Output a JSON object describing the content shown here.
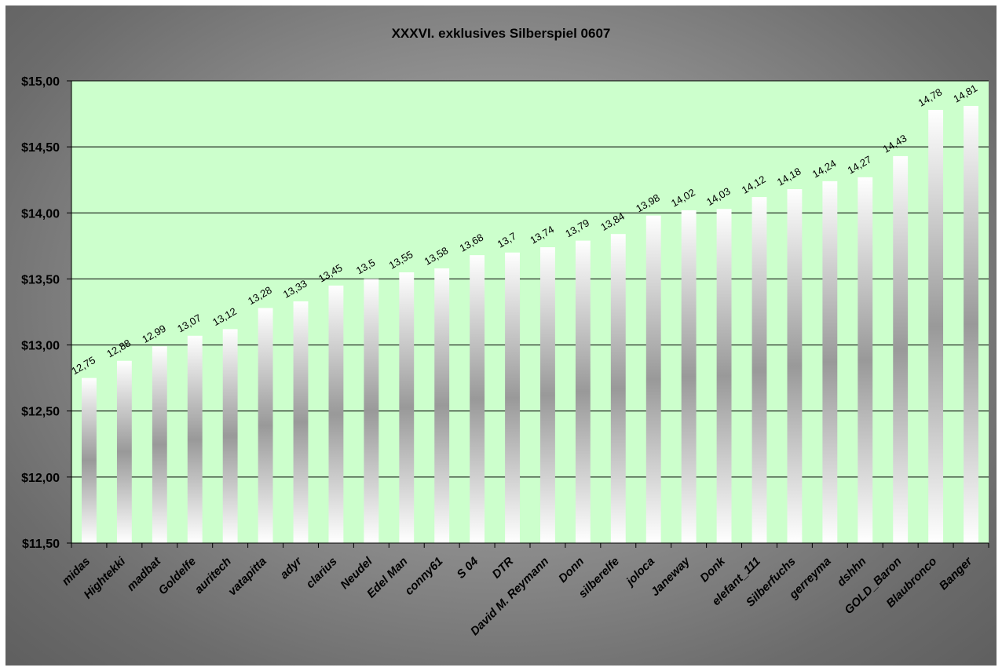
{
  "chart_data": {
    "type": "bar",
    "title": "XXXVI. exklusives Silberspiel 0607",
    "xlabel": "",
    "ylabel": "",
    "ylim": [
      11.5,
      15.0
    ],
    "y_ticks": [
      {
        "value": 11.5,
        "label": "$11,50"
      },
      {
        "value": 12.0,
        "label": "$12,00"
      },
      {
        "value": 12.5,
        "label": "$12,50"
      },
      {
        "value": 13.0,
        "label": "$13,00"
      },
      {
        "value": 13.5,
        "label": "$13,50"
      },
      {
        "value": 14.0,
        "label": "$14,00"
      },
      {
        "value": 14.5,
        "label": "$14,50"
      },
      {
        "value": 15.0,
        "label": "$15,00"
      }
    ],
    "grid": true,
    "legend": "none",
    "plot_background": "#ccffcc",
    "bar_colors": [
      "#ffffff",
      "#999999"
    ],
    "categories": [
      "midas",
      "Hightekki",
      "madbat",
      "Goldelfe",
      "auritech",
      "vatapitta",
      "adyr",
      "clarius",
      "Neudel",
      "Edel Man",
      "conny61",
      "S 04",
      "DTR",
      "David M. Reymann",
      "Donn",
      "silberelfe",
      "joloca",
      "Janeway",
      "Donk",
      "elefant_111",
      "Silberfuchs",
      "gerreyma",
      "dshhn",
      "GOLD_Baron",
      "Blaubronco",
      "Banger"
    ],
    "values": [
      12.75,
      12.88,
      12.99,
      13.07,
      13.12,
      13.28,
      13.33,
      13.45,
      13.5,
      13.55,
      13.58,
      13.68,
      13.7,
      13.74,
      13.79,
      13.84,
      13.98,
      14.02,
      14.03,
      14.12,
      14.18,
      14.24,
      14.27,
      14.43,
      14.78,
      14.81
    ],
    "data_labels": [
      "12,75",
      "12,88",
      "12,99",
      "13,07",
      "13,12",
      "13,28",
      "13,33",
      "13,45",
      "13,5",
      "13,55",
      "13,58",
      "13,68",
      "13,7",
      "13,74",
      "13,79",
      "13,84",
      "13,98",
      "14,02",
      "14,03",
      "14,12",
      "14,18",
      "14,24",
      "14,27",
      "14,43",
      "14,78",
      "14,81"
    ]
  }
}
